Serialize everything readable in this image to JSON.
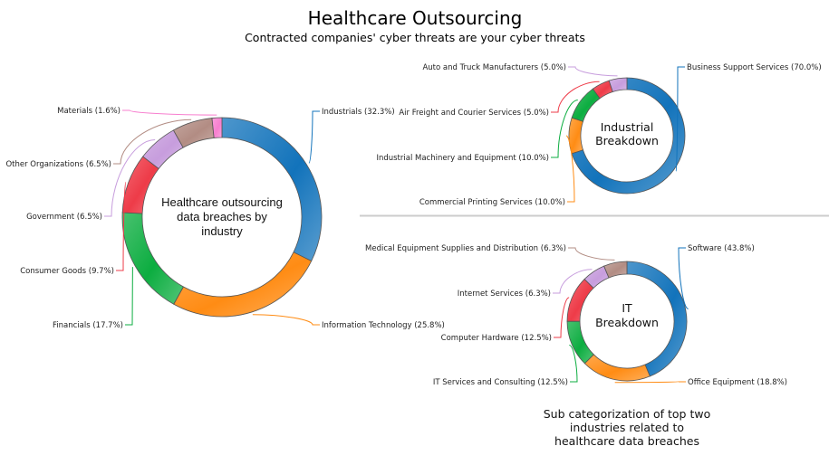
{
  "colors": {
    "blue": "#1273bb",
    "orange": "#ff8c14",
    "green": "#0cad40",
    "red": "#ee3b48",
    "purple": "#c79ddd",
    "brown": "#b28c83",
    "pink": "#f77fcf",
    "separator": "#cccccc"
  },
  "chart_data": [
    {
      "type": "pie",
      "variant": "donut",
      "title": "Healthcare Outsourcing",
      "subtitle": "Contracted companies' cyber threats are your cyber threats",
      "center_label": [
        "Healthcare outsourcing",
        "data breaches by",
        "industry"
      ],
      "slices": [
        {
          "label": "Industrials (32.3%)",
          "value": 32.3,
          "color": "blue"
        },
        {
          "label": "Information Technology (25.8%)",
          "value": 25.8,
          "color": "orange"
        },
        {
          "label": "Financials (17.7%)",
          "value": 17.7,
          "color": "green"
        },
        {
          "label": "Consumer Goods (9.7%)",
          "value": 9.7,
          "color": "red"
        },
        {
          "label": "Government (6.5%)",
          "value": 6.5,
          "color": "purple"
        },
        {
          "label": "Other Organizations (6.5%)",
          "value": 6.5,
          "color": "brown"
        },
        {
          "label": "Materials (1.6%)",
          "value": 1.6,
          "color": "pink"
        }
      ]
    },
    {
      "type": "pie",
      "variant": "donut",
      "center_label": [
        "Industrial",
        "Breakdown"
      ],
      "slices": [
        {
          "label": "Business Support Services (70.0%)",
          "value": 70.0,
          "color": "blue"
        },
        {
          "label": "Commercial Printing Services (10.0%)",
          "value": 10.0,
          "color": "orange"
        },
        {
          "label": "Industrial Machinery and Equipment (10.0%)",
          "value": 10.0,
          "color": "green"
        },
        {
          "label": "Air Freight and Courier Services (5.0%)",
          "value": 5.0,
          "color": "red"
        },
        {
          "label": "Auto and Truck Manufacturers (5.0%)",
          "value": 5.0,
          "color": "purple"
        }
      ]
    },
    {
      "type": "pie",
      "variant": "donut",
      "center_label": [
        "IT",
        "Breakdown"
      ],
      "slices": [
        {
          "label": "Software (43.8%)",
          "value": 43.8,
          "color": "blue"
        },
        {
          "label": "Office Equipment (18.8%)",
          "value": 18.8,
          "color": "orange"
        },
        {
          "label": "IT Services and Consulting (12.5%)",
          "value": 12.5,
          "color": "green"
        },
        {
          "label": "Computer Hardware (12.5%)",
          "value": 12.5,
          "color": "red"
        },
        {
          "label": "Internet Services (6.3%)",
          "value": 6.3,
          "color": "purple"
        },
        {
          "label": "Medical Equipment Supplies and Distribution (6.3%)",
          "value": 6.3,
          "color": "brown"
        }
      ]
    }
  ],
  "caption": [
    "Sub categorization of top two",
    "industries related to",
    "healthcare data breaches"
  ]
}
